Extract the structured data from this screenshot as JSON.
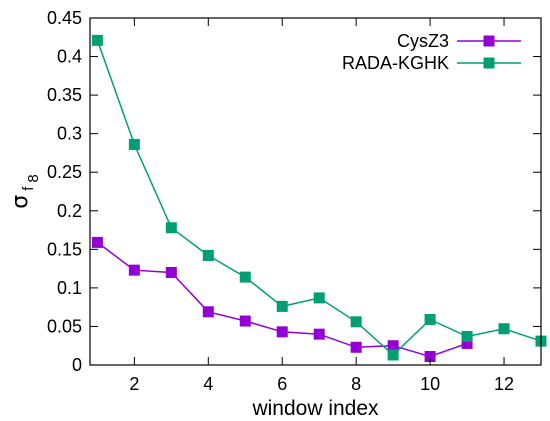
{
  "chart_data": {
    "type": "line",
    "xlabel": "window index",
    "ylabel": {
      "symbol": "σ",
      "subscript": "f",
      "subsubscript": "8"
    },
    "xlim": [
      0.8,
      13
    ],
    "ylim": [
      0,
      0.45
    ],
    "xticks": [
      2,
      4,
      6,
      8,
      10,
      12
    ],
    "yticks": [
      0,
      0.05,
      0.1,
      0.15,
      0.2,
      0.25,
      0.3,
      0.35,
      0.4,
      0.45
    ],
    "ytick_labels": [
      "0",
      "0.05",
      "0.1",
      "0.15",
      "0.2",
      "0.25",
      "0.3",
      "0.35",
      "0.4",
      "0.45"
    ],
    "grid": false,
    "legend_position": "top-right",
    "series": [
      {
        "name": "CysZ3",
        "color": "#9400d3",
        "marker": "square",
        "x": [
          1,
          2,
          3,
          4,
          5,
          6,
          7,
          8,
          9,
          10,
          11
        ],
        "y": [
          0.159,
          0.123,
          0.12,
          0.069,
          0.057,
          0.043,
          0.04,
          0.023,
          0.025,
          0.011,
          0.028
        ]
      },
      {
        "name": "RADA-KGHK",
        "color": "#009e73",
        "marker": "square",
        "x": [
          1,
          2,
          3,
          4,
          5,
          6,
          7,
          8,
          9,
          10,
          11,
          12,
          13
        ],
        "y": [
          0.421,
          0.286,
          0.178,
          0.142,
          0.114,
          0.076,
          0.087,
          0.056,
          0.013,
          0.059,
          0.037,
          0.047,
          0.031
        ]
      }
    ]
  }
}
